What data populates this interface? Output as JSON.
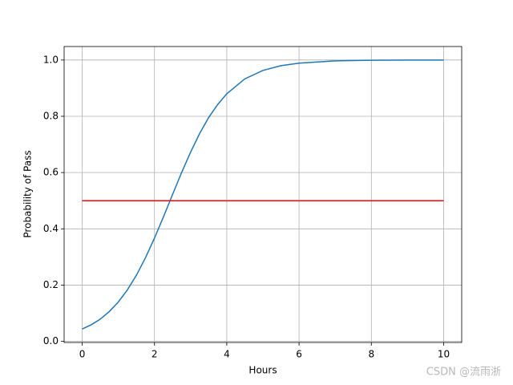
{
  "chart_data": {
    "type": "line",
    "xlabel": "Hours",
    "ylabel": "Probability of Pass",
    "xlim": [
      -0.5,
      10.5
    ],
    "ylim": [
      -0.004,
      1.048
    ],
    "xticks": [
      0,
      2,
      4,
      6,
      8,
      10
    ],
    "yticks": [
      {
        "value": 0,
        "label": "0.0"
      },
      0.2,
      0.4,
      0.6,
      0.8,
      {
        "value": 1,
        "label": "1.0"
      }
    ],
    "grid": true,
    "series": [
      {
        "color": "#1f77b4",
        "x": [
          0,
          0.25,
          0.5,
          0.75,
          1,
          1.25,
          1.5,
          1.75,
          2,
          2.25,
          2.5,
          2.75,
          3,
          3.25,
          3.5,
          3.75,
          4,
          4.5,
          5,
          5.5,
          6,
          7,
          8,
          9,
          10
        ],
        "values": [
          0.044,
          0.059,
          0.079,
          0.106,
          0.14,
          0.183,
          0.235,
          0.297,
          0.367,
          0.443,
          0.522,
          0.6,
          0.673,
          0.739,
          0.796,
          0.842,
          0.88,
          0.933,
          0.963,
          0.98,
          0.989,
          0.997,
          0.999,
          1.0,
          1.0
        ]
      },
      {
        "color": "#ff0000",
        "x": [
          0,
          10
        ],
        "values": [
          0.5,
          0.5
        ]
      }
    ]
  },
  "watermark": "CSDN @流雨浙"
}
